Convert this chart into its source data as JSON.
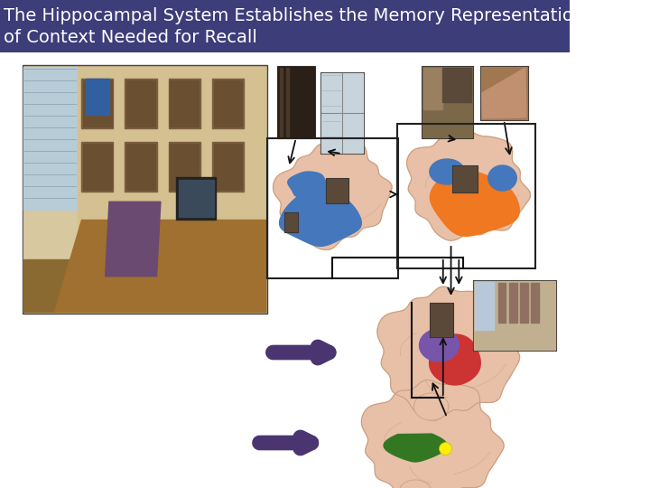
{
  "title_line1": "The Hippocampal System Establishes the Memory Representation",
  "title_line2": "of Context Needed for Recall",
  "title_bg_color": "#3d3d7a",
  "title_text_color": "#ffffff",
  "title_font_size": 14,
  "bg_color": "#ffffff",
  "arrow_color": "#111111",
  "purple_arrow_color": "#4a3570",
  "brain_color": "#e8c0a8",
  "brain_outline": "#c8a080",
  "blue_hipp": "#4477bb",
  "orange_hipp": "#f07820",
  "red_hipp": "#cc3333",
  "green_hipp": "#337722",
  "yellow_dot": "#ffee00",
  "purple_region": "#7755aa",
  "photo_dark": "#3a3020",
  "photo_window": "#c0ccd8",
  "photo_room": "#8a7050",
  "photo_tan": "#8a6a40"
}
